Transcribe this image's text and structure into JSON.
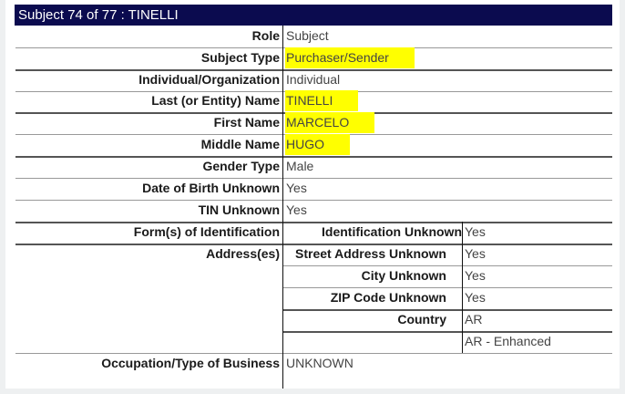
{
  "title": "Subject 74 of 77 : TINELLI",
  "highlight_color": "#ffff00",
  "header_color": "#0b0b4f",
  "rows": [
    {
      "label": "Role",
      "value": "Subject"
    },
    {
      "label": "Subject Type",
      "value": "Purchaser/Sender",
      "highlighted": true
    },
    {
      "label": "Individual/Organization",
      "value": "Individual"
    },
    {
      "label": "Last (or Entity) Name",
      "value": "TINELLI",
      "highlighted": true
    },
    {
      "label": "First Name",
      "value": "MARCELO",
      "highlighted": true
    },
    {
      "label": "Middle Name",
      "value": "HUGO",
      "highlighted": true
    },
    {
      "label": "Gender Type",
      "value": "Male"
    },
    {
      "label": "Date of Birth Unknown",
      "value": "Yes"
    },
    {
      "label": "TIN Unknown",
      "value": "Yes"
    }
  ],
  "identification": {
    "label": "Form(s) of Identification",
    "sub_label": "Identification Unknown",
    "value": "Yes"
  },
  "address": {
    "label": "Address(es)",
    "fields": [
      {
        "label": "Street Address Unknown",
        "value": "Yes"
      },
      {
        "label": "City Unknown",
        "value": "Yes"
      },
      {
        "label": "ZIP Code Unknown",
        "value": "Yes"
      },
      {
        "label": "Country",
        "value": "AR"
      },
      {
        "label": "",
        "value": "AR - Enhanced"
      }
    ]
  },
  "occupation": {
    "label": "Occupation/Type of Business",
    "value": "UNKNOWN"
  }
}
